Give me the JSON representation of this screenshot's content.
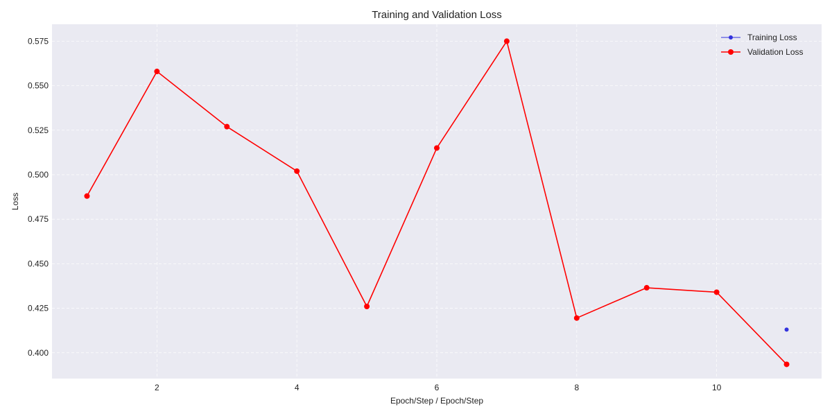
{
  "chart_data": {
    "type": "line",
    "title": "Training and Validation Loss",
    "xlabel": "Epoch/Step / Epoch/Step",
    "ylabel": "Loss",
    "xlim": [
      0.5,
      11.5
    ],
    "ylim": [
      0.3855,
      0.5845
    ],
    "xticks": [
      2,
      4,
      6,
      8,
      10
    ],
    "yticks": [
      0.4,
      0.425,
      0.45,
      0.475,
      0.5,
      0.525,
      0.55,
      0.575
    ],
    "ytick_labels": [
      "0.400",
      "0.425",
      "0.450",
      "0.475",
      "0.500",
      "0.525",
      "0.550",
      "0.575"
    ],
    "grid": true,
    "legend_position": "top-right",
    "background": "#eaeaf2",
    "series": [
      {
        "name": "Training Loss",
        "color": "#3333dd",
        "marker_size": 3,
        "line_width": 1,
        "x": [
          11
        ],
        "y": [
          0.413
        ]
      },
      {
        "name": "Validation Loss",
        "color": "#ff0000",
        "marker_size": 4,
        "line_width": 1.6,
        "x": [
          1,
          2,
          3,
          4,
          5,
          6,
          7,
          8,
          9,
          10,
          11
        ],
        "y": [
          0.488,
          0.558,
          0.527,
          0.502,
          0.426,
          0.515,
          0.575,
          0.4195,
          0.4365,
          0.434,
          0.3935
        ]
      }
    ]
  }
}
